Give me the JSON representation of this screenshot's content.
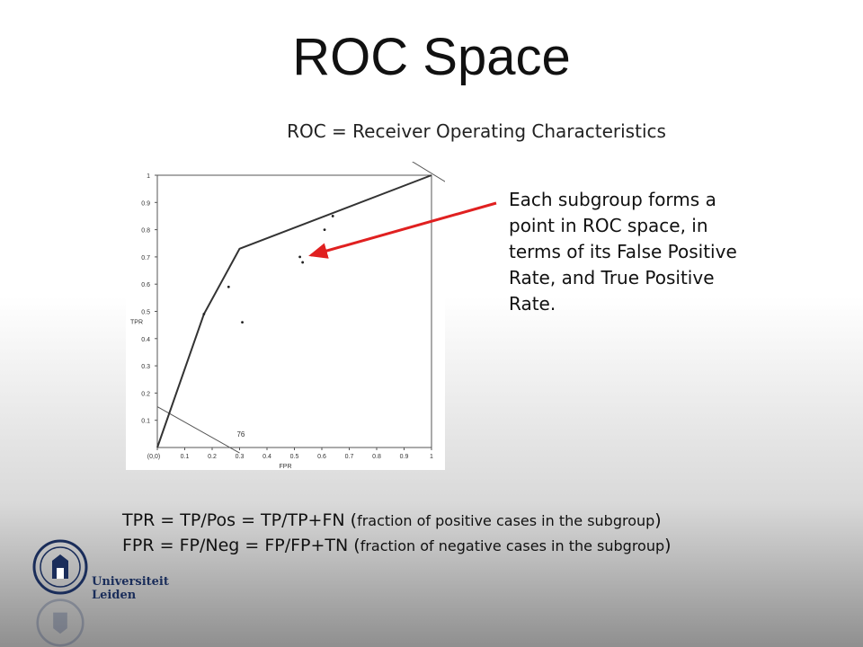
{
  "slide": {
    "title": "ROC Space",
    "subtitle": "ROC = Receiver Operating Characteristics",
    "note_lines": [
      "Each subgroup forms a",
      "point in ROC space, in",
      "terms of its False Positive",
      "Rate, and True Positive",
      "Rate."
    ],
    "formula_tpr_main": "TPR = TP/Pos = TP/TP+FN (",
    "formula_tpr_small": "fraction of positive cases in the subgroup",
    "formula_tpr_close": ")",
    "formula_fpr_main": "FPR = FP/Neg = FP/FP+TN (",
    "formula_fpr_small": "fraction of negative cases in the subgroup",
    "formula_fpr_close": ")",
    "logo_text": "Universiteit Leiden",
    "arrow_color": "#e02020"
  },
  "chart_data": {
    "type": "scatter",
    "title": "",
    "xlabel": "FPR",
    "ylabel": "TPR",
    "xlim": [
      0,
      1
    ],
    "ylim": [
      0,
      1
    ],
    "x_ticks": [
      "(0,0)",
      "0.1",
      "0.2",
      "0.3",
      "0.4",
      "0.5",
      "0.6",
      "0.7",
      "0.8",
      "0.9",
      "1"
    ],
    "y_ticks": [
      "0.1",
      "0.2",
      "0.3",
      "0.4",
      "0.5",
      "0.6",
      "0.7",
      "0.8",
      "0.9",
      "1"
    ],
    "hull": [
      {
        "x": 0.0,
        "y": 0.0
      },
      {
        "x": 0.17,
        "y": 0.49
      },
      {
        "x": 0.3,
        "y": 0.73
      },
      {
        "x": 1.0,
        "y": 1.0
      }
    ],
    "points": [
      {
        "x": 0.17,
        "y": 0.49
      },
      {
        "x": 0.26,
        "y": 0.59
      },
      {
        "x": 0.31,
        "y": 0.46
      },
      {
        "x": 0.52,
        "y": 0.7
      },
      {
        "x": 0.53,
        "y": 0.68
      },
      {
        "x": 0.61,
        "y": 0.8
      },
      {
        "x": 0.64,
        "y": 0.85
      }
    ],
    "iso_line_label": "76",
    "grid": false
  }
}
